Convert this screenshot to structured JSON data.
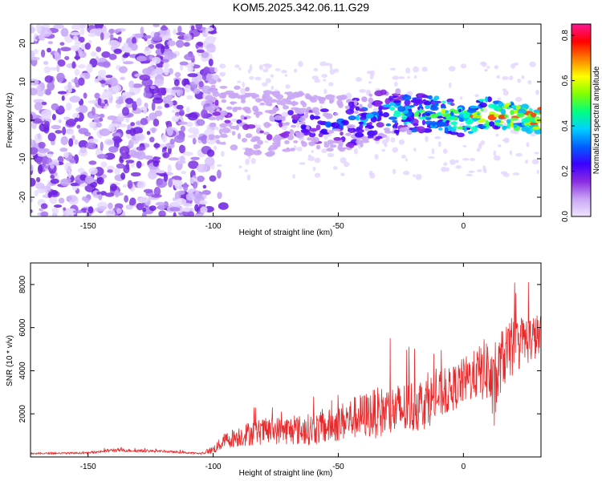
{
  "title": "KOM5.2025.342.06.11.G29",
  "chart_data": [
    {
      "type": "heatmap",
      "name": "spectrogram",
      "xlabel": "Height of straight line (km)",
      "ylabel": "Frequency (Hz)",
      "xlim": [
        -173,
        31
      ],
      "ylim": [
        -25,
        25
      ],
      "xticks": [
        -150,
        -100,
        -50,
        0
      ],
      "yticks": [
        -20,
        -10,
        0,
        10,
        20
      ],
      "colorbar": {
        "label": "Normalized spectral amplitude",
        "range": [
          0.0,
          0.85
        ],
        "ticks": [
          0.0,
          0.2,
          0.4,
          0.6,
          0.8
        ],
        "colormap": [
          "#f0e4ff",
          "#c9a6f5",
          "#8a2be2",
          "#3b00ff",
          "#0060ff",
          "#00d0ff",
          "#00ff80",
          "#80ff00",
          "#ffff00",
          "#ff8000",
          "#ff0000",
          "#ff1493"
        ]
      },
      "description_bands": {
        "noise_region_x": [
          -173,
          -100
        ],
        "signal_ridge": {
          "x": [
            -100,
            -90,
            -80,
            -70,
            -60,
            -50,
            -40,
            -30,
            -20,
            -10,
            0,
            10,
            20,
            31
          ],
          "y": [
            3,
            0,
            -1,
            0,
            -1,
            -1,
            0,
            2,
            2,
            2,
            0,
            2,
            1,
            0
          ]
        }
      }
    },
    {
      "type": "line",
      "name": "snr",
      "xlabel": "Height of straight line (km)",
      "ylabel": "SNR (10 * v/v)",
      "xlim": [
        -173,
        31
      ],
      "ylim": [
        0,
        9000
      ],
      "xticks": [
        -150,
        -100,
        -50,
        0
      ],
      "yticks": [
        2000,
        4000,
        6000,
        8000
      ],
      "color": "#e8292b",
      "envelope": {
        "x": [
          -173,
          -150,
          -140,
          -120,
          -105,
          -100,
          -95,
          -85,
          -75,
          -65,
          -55,
          -45,
          -35,
          -25,
          -15,
          -5,
          0,
          5,
          10,
          12,
          15,
          20,
          25,
          31
        ],
        "base": [
          150,
          180,
          300,
          250,
          150,
          300,
          700,
          1000,
          1100,
          1100,
          1200,
          1600,
          1800,
          1900,
          2300,
          2900,
          3300,
          3600,
          3800,
          2400,
          4200,
          4800,
          5200,
          5400
        ],
        "amp": [
          60,
          60,
          120,
          80,
          60,
          300,
          600,
          900,
          1000,
          1100,
          1200,
          1500,
          1800,
          2000,
          1900,
          1600,
          1700,
          1800,
          2500,
          2800,
          2200,
          2000,
          1800,
          1600
        ]
      }
    }
  ]
}
